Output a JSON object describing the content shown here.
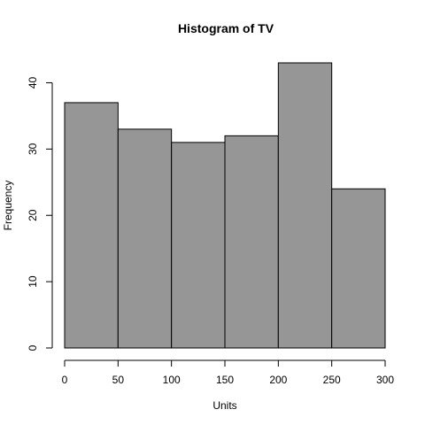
{
  "chart_data": {
    "type": "bar",
    "title": "Histogram of  TV",
    "xlabel": "Units",
    "ylabel": "Frequency",
    "bins": [
      {
        "start": 0,
        "end": 50,
        "count": 37
      },
      {
        "start": 50,
        "end": 100,
        "count": 33
      },
      {
        "start": 100,
        "end": 150,
        "count": 31
      },
      {
        "start": 150,
        "end": 200,
        "count": 32
      },
      {
        "start": 200,
        "end": 250,
        "count": 43
      },
      {
        "start": 250,
        "end": 300,
        "count": 24
      }
    ],
    "xlim": [
      0,
      300
    ],
    "ylim": [
      0,
      43
    ],
    "x_ticks": [
      "0",
      "50",
      "100",
      "150",
      "200",
      "250",
      "300"
    ],
    "y_ticks": [
      "0",
      "10",
      "20",
      "30",
      "40"
    ],
    "grid": false,
    "legend": "none",
    "bar_color": "#969696",
    "edge_color": "#000000"
  }
}
